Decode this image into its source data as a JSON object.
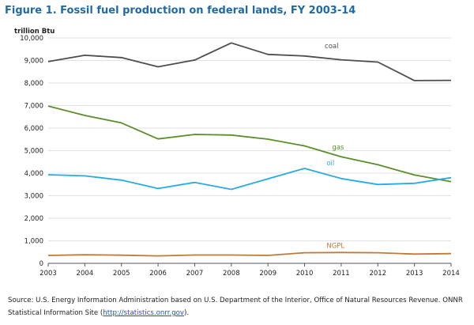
{
  "title": "Figure 1. Fossil fuel production on federal lands, FY 2003-14",
  "chart_data": {
    "type": "line",
    "unit_label": "trillion Btu",
    "x": [
      2003,
      2004,
      2005,
      2006,
      2007,
      2008,
      2009,
      2010,
      2011,
      2012,
      2013,
      2014
    ],
    "ylim": [
      0,
      10000
    ],
    "yticks": [
      0,
      1000,
      2000,
      3000,
      4000,
      5000,
      6000,
      7000,
      8000,
      9000,
      10000
    ],
    "ytick_labels": [
      "0",
      "1,000",
      "2,000",
      "3,000",
      "4,000",
      "5,000",
      "6,000",
      "7,000",
      "8,000",
      "9,000",
      "10,000"
    ],
    "grid": true,
    "series": [
      {
        "name": "coal",
        "color": "#4d4d4d",
        "values": [
          8950,
          9230,
          9130,
          8720,
          9020,
          9780,
          9270,
          9200,
          9030,
          8930,
          8110,
          8120
        ]
      },
      {
        "name": "gas",
        "color": "#5a8f29",
        "values": [
          6980,
          6560,
          6230,
          5520,
          5720,
          5690,
          5510,
          5210,
          4730,
          4380,
          3920,
          3620
        ]
      },
      {
        "name": "oil",
        "color": "#29abe2",
        "values": [
          3930,
          3880,
          3690,
          3320,
          3590,
          3280,
          3750,
          4210,
          3760,
          3500,
          3550,
          3800
        ]
      },
      {
        "name": "NGPL",
        "color": "#c07a3a",
        "values": [
          350,
          380,
          360,
          330,
          370,
          370,
          350,
          470,
          480,
          470,
          410,
          430
        ]
      }
    ]
  },
  "source": {
    "prefix": "Source: U.S. Energy Information Administration based on U.S. Department of the Interior, Office of Natural Resources Revenue. ONNR Statistical Information Site (",
    "link": "http://statistics.onrr.gov",
    "suffix": ")."
  }
}
